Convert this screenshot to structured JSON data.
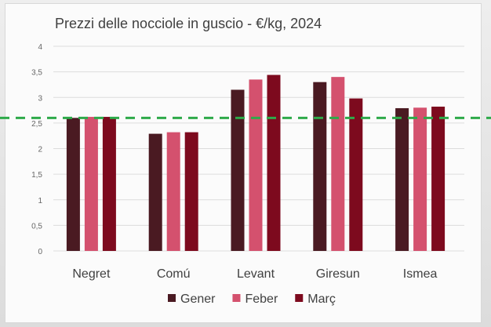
{
  "chart_data": {
    "type": "bar",
    "title": "Prezzi delle nocciole in guscio - €/kg, 2024",
    "xlabel": "",
    "ylabel": "",
    "ylim": [
      0,
      4
    ],
    "yticks": [
      "0",
      "0,5",
      "1",
      "1,5",
      "2",
      "2,5",
      "3",
      "3,5",
      "4"
    ],
    "grid": true,
    "legend_position": "bottom",
    "categories": [
      "Negret",
      "Comú",
      "Levant",
      "Giresun",
      "Ismea"
    ],
    "series": [
      {
        "name": "Gener",
        "color": "#4a1a22",
        "values": [
          2.6,
          2.29,
          3.15,
          3.3,
          2.79
        ]
      },
      {
        "name": "Feber",
        "color": "#d4516e",
        "values": [
          2.62,
          2.32,
          3.35,
          3.4,
          2.8
        ]
      },
      {
        "name": "Març",
        "color": "#7d0a1e",
        "values": [
          2.62,
          2.32,
          3.44,
          2.98,
          2.82
        ]
      }
    ],
    "reference_line": {
      "value": 2.6,
      "color": "#2eaa4a",
      "style": "dashed"
    }
  }
}
